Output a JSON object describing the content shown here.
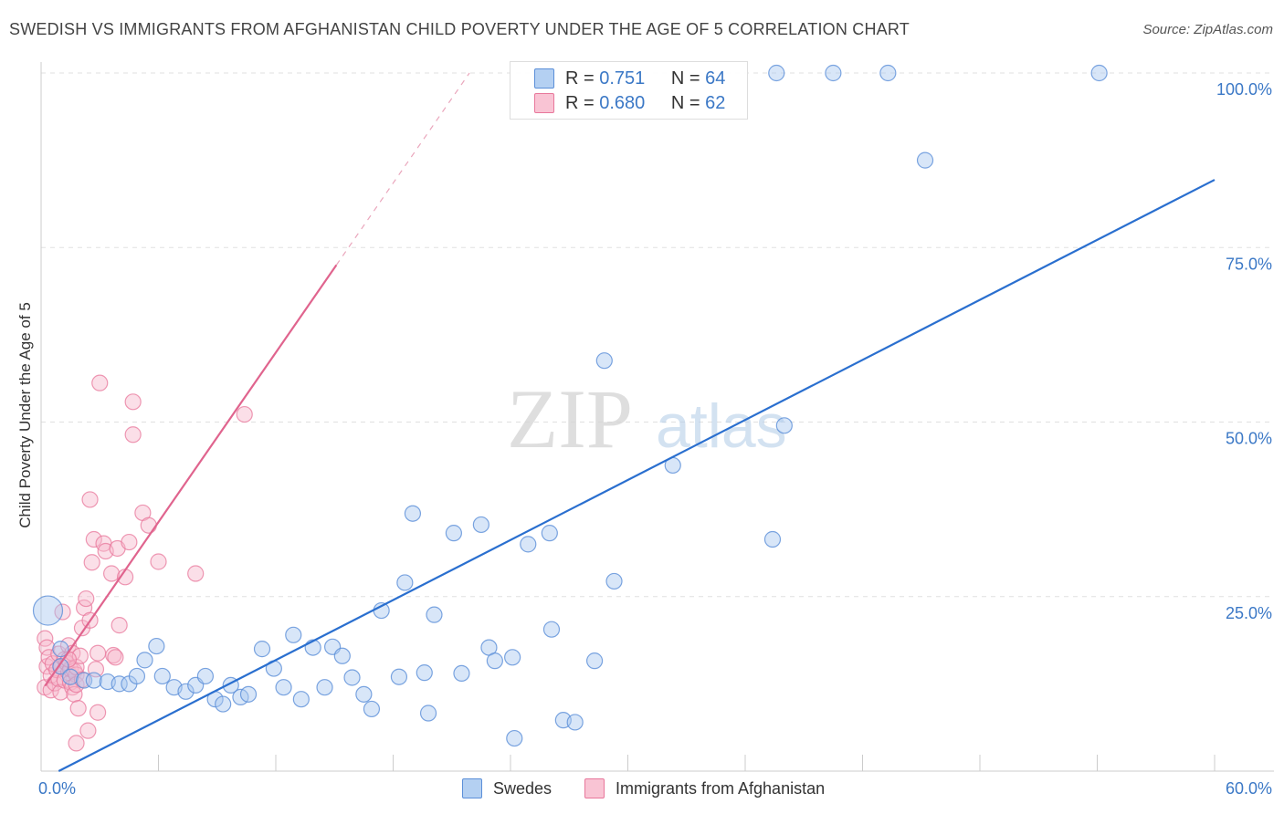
{
  "header": {
    "title": "SWEDISH VS IMMIGRANTS FROM AFGHANISTAN CHILD POVERTY UNDER THE AGE OF 5 CORRELATION CHART",
    "source": "Source: ZipAtlas.com"
  },
  "watermark": {
    "part1": "ZIP",
    "part2": "atlas"
  },
  "legend_top": {
    "rows": [
      {
        "r_label": "R =",
        "r_value": "0.751",
        "n_label": "N =",
        "n_value": "64"
      },
      {
        "r_label": "R =",
        "r_value": "0.680",
        "n_label": "N =",
        "n_value": "62"
      }
    ]
  },
  "legend_bottom": {
    "series1": "Swedes",
    "series2": "Immigrants from Afghanistan"
  },
  "colors": {
    "blue_fill": "#a8c8f0",
    "blue_stroke": "#5b8fd8",
    "blue_line": "#2a6fcf",
    "pink_fill": "#f7b8cb",
    "pink_stroke": "#e8779b",
    "pink_line": "#e0648e",
    "axis_text": "#3b78c6",
    "grid": "#e0e0e0"
  },
  "chart_data": {
    "type": "scatter",
    "title": "SWEDISH VS IMMIGRANTS FROM AFGHANISTAN CHILD POVERTY UNDER THE AGE OF 5 CORRELATION CHART",
    "xlabel": "",
    "ylabel": "Child Poverty Under the Age of 5",
    "xlim": [
      0,
      60
    ],
    "ylim": [
      0,
      100
    ],
    "x_tick_labels": [
      "0.0%",
      "60.0%"
    ],
    "y_ticks": [
      25,
      50,
      75,
      100
    ],
    "y_tick_labels": [
      "25.0%",
      "50.0%",
      "75.0%",
      "100.0%"
    ],
    "grid": true,
    "series": [
      {
        "name": "Swedes",
        "r": 0.751,
        "n": 64,
        "trend": {
          "x": [
            0.9,
            60
          ],
          "y": [
            0,
            84.7
          ]
        },
        "points": [
          [
            0.35,
            23.0
          ],
          [
            1.0,
            17.5
          ],
          [
            1.0,
            15.0
          ],
          [
            1.5,
            13.5
          ],
          [
            2.2,
            13.0
          ],
          [
            2.7,
            13.0
          ],
          [
            3.4,
            12.8
          ],
          [
            4.0,
            12.5
          ],
          [
            4.5,
            12.5
          ],
          [
            4.9,
            13.6
          ],
          [
            5.3,
            15.9
          ],
          [
            5.9,
            17.9
          ],
          [
            6.2,
            13.6
          ],
          [
            6.8,
            12.0
          ],
          [
            7.4,
            11.4
          ],
          [
            7.9,
            12.3
          ],
          [
            8.4,
            13.6
          ],
          [
            8.9,
            10.3
          ],
          [
            9.3,
            9.6
          ],
          [
            9.7,
            12.3
          ],
          [
            10.2,
            10.6
          ],
          [
            10.6,
            11.0
          ],
          [
            11.3,
            17.5
          ],
          [
            11.9,
            14.7
          ],
          [
            12.4,
            12.0
          ],
          [
            12.9,
            19.5
          ],
          [
            13.3,
            10.3
          ],
          [
            13.9,
            17.7
          ],
          [
            14.5,
            12.0
          ],
          [
            14.9,
            17.8
          ],
          [
            15.4,
            16.5
          ],
          [
            15.9,
            13.4
          ],
          [
            16.5,
            11.0
          ],
          [
            16.9,
            8.9
          ],
          [
            17.4,
            23.0
          ],
          [
            18.3,
            13.5
          ],
          [
            18.6,
            27.0
          ],
          [
            19.0,
            36.9
          ],
          [
            19.6,
            14.1
          ],
          [
            19.8,
            8.3
          ],
          [
            20.1,
            22.4
          ],
          [
            21.1,
            34.1
          ],
          [
            21.5,
            14.0
          ],
          [
            22.5,
            35.3
          ],
          [
            22.9,
            17.7
          ],
          [
            23.2,
            15.8
          ],
          [
            24.1,
            16.3
          ],
          [
            24.2,
            4.7
          ],
          [
            24.9,
            32.5
          ],
          [
            26.0,
            34.1
          ],
          [
            26.1,
            20.3
          ],
          [
            26.7,
            7.3
          ],
          [
            27.3,
            7.0
          ],
          [
            28.3,
            15.8
          ],
          [
            28.8,
            58.8
          ],
          [
            29.3,
            27.2
          ],
          [
            32.3,
            43.8
          ],
          [
            37.4,
            33.2
          ],
          [
            38.0,
            49.5
          ],
          [
            37.6,
            100.0
          ],
          [
            40.5,
            100.0
          ],
          [
            43.3,
            100.0
          ],
          [
            45.2,
            87.5
          ],
          [
            54.1,
            100.0
          ]
        ]
      },
      {
        "name": "Immigrants from Afghanistan",
        "r": 0.68,
        "n": 62,
        "trend": {
          "x": [
            0.2,
            15.1
          ],
          "y": [
            12.2,
            72.5
          ]
        },
        "trend_dashed": {
          "x": [
            15.1,
            21.9
          ],
          "y": [
            72.5,
            100.0
          ]
        },
        "points": [
          [
            0.2,
            19.0
          ],
          [
            0.2,
            12.0
          ],
          [
            0.3,
            17.7
          ],
          [
            0.3,
            15.0
          ],
          [
            0.4,
            16.3
          ],
          [
            0.5,
            13.7
          ],
          [
            0.5,
            11.6
          ],
          [
            0.6,
            15.4
          ],
          [
            0.7,
            12.6
          ],
          [
            0.8,
            14.5
          ],
          [
            0.9,
            16.8
          ],
          [
            0.9,
            13.2
          ],
          [
            1.0,
            15.0
          ],
          [
            1.0,
            11.3
          ],
          [
            1.1,
            22.8
          ],
          [
            1.2,
            16.0
          ],
          [
            1.2,
            13.0
          ],
          [
            1.3,
            15.5
          ],
          [
            1.4,
            14.1
          ],
          [
            1.4,
            18.0
          ],
          [
            1.5,
            12.7
          ],
          [
            1.5,
            14.6
          ],
          [
            1.6,
            16.9
          ],
          [
            1.6,
            12.0
          ],
          [
            1.7,
            14.3
          ],
          [
            1.7,
            11.0
          ],
          [
            1.8,
            13.8
          ],
          [
            1.8,
            12.4
          ],
          [
            1.9,
            9.0
          ],
          [
            1.8,
            14.9
          ],
          [
            1.8,
            4.0
          ],
          [
            2.0,
            16.5
          ],
          [
            2.1,
            20.5
          ],
          [
            2.1,
            13.1
          ],
          [
            2.2,
            23.4
          ],
          [
            2.3,
            24.7
          ],
          [
            2.4,
            5.8
          ],
          [
            2.5,
            38.9
          ],
          [
            2.5,
            21.6
          ],
          [
            2.6,
            29.9
          ],
          [
            2.7,
            33.2
          ],
          [
            2.8,
            14.6
          ],
          [
            2.9,
            8.4
          ],
          [
            2.9,
            16.9
          ],
          [
            3.0,
            55.6
          ],
          [
            3.2,
            32.6
          ],
          [
            3.3,
            31.5
          ],
          [
            3.6,
            28.3
          ],
          [
            3.7,
            16.6
          ],
          [
            3.8,
            16.3
          ],
          [
            3.9,
            31.9
          ],
          [
            4.0,
            20.9
          ],
          [
            4.3,
            27.8
          ],
          [
            4.5,
            32.8
          ],
          [
            4.7,
            52.9
          ],
          [
            4.7,
            48.2
          ],
          [
            5.2,
            37.0
          ],
          [
            5.5,
            35.2
          ],
          [
            6.0,
            30.0
          ],
          [
            7.9,
            28.3
          ],
          [
            10.4,
            51.1
          ],
          [
            1.4,
            16.0
          ]
        ]
      }
    ]
  }
}
